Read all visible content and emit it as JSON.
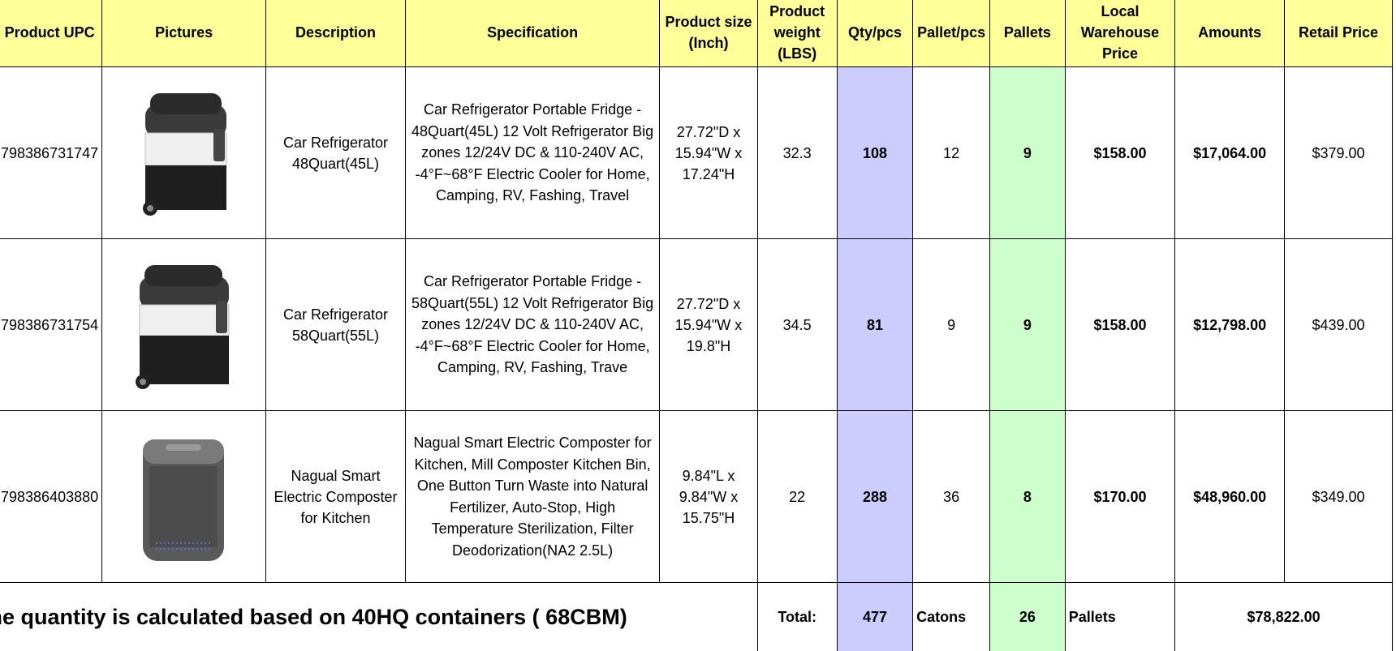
{
  "headers": {
    "upc": "Product UPC",
    "pictures": "Pictures",
    "description": "Description",
    "specification": "Specification",
    "size": "Product size (Inch)",
    "weight": "Product weight (LBS)",
    "qty": "Qty/pcs",
    "pallet_pcs": "Pallet/pcs",
    "pallets": "Pallets",
    "local_price": "Local Warehouse Price",
    "amounts": "Amounts",
    "retail": "Retail Price"
  },
  "rows": [
    {
      "upc": "798386731747",
      "picture": "car-refrigerator-45l-image",
      "description": "Car Refrigerator 48Quart(45L)",
      "specification": "Car Refrigerator Portable Fridge - 48Quart(45L) 12 Volt Refrigerator Big zones 12/24V DC & 110-240V AC, -4°F~68°F Electric Cooler for Home, Camping, RV, Fashing, Travel",
      "size": "27.72\"D x 15.94\"W x 17.24\"H",
      "weight": "32.3",
      "qty": "108",
      "pallet_pcs": "12",
      "pallets": "9",
      "local_price": "$158.00",
      "amounts": "$17,064.00",
      "retail": "$379.00"
    },
    {
      "upc": "798386731754",
      "picture": "car-refrigerator-55l-image",
      "description": "Car Refrigerator 58Quart(55L)",
      "specification": "Car Refrigerator Portable Fridge - 58Quart(55L) 12 Volt Refrigerator Big zones 12/24V DC & 110-240V AC, -4°F~68°F Electric Cooler for Home, Camping, RV, Fashing, Trave",
      "size": "27.72\"D x 15.94\"W x 19.8\"H",
      "weight": "34.5",
      "qty": "81",
      "pallet_pcs": "9",
      "pallets": "9",
      "local_price": "$158.00",
      "amounts": "$12,798.00",
      "retail": "$439.00"
    },
    {
      "upc": "798386403880",
      "picture": "electric-composter-image",
      "description": "Nagual Smart Electric Composter for Kitchen",
      "specification": "Nagual Smart Electric Composter for Kitchen, Mill Composter Kitchen Bin, One Button Turn Waste into Natural Fertilizer, Auto-Stop, High Temperature Sterilization, Filter Deodorization(NA2 2.5L)",
      "size": "9.84\"L x 9.84\"W x 15.75\"H",
      "weight": "22",
      "qty": "288",
      "pallet_pcs": "36",
      "pallets": "8",
      "local_price": "$170.00",
      "amounts": "$48,960.00",
      "retail": "$349.00"
    }
  ],
  "footer": {
    "note": "he quantity is calculated based on 40HQ containers ( 68CBM)",
    "total_label": "Total:",
    "total_qty": "477",
    "catons_label": "Catons",
    "total_pallets": "26",
    "pallets_label": "Pallets",
    "grand_total": "$78,822.00"
  }
}
